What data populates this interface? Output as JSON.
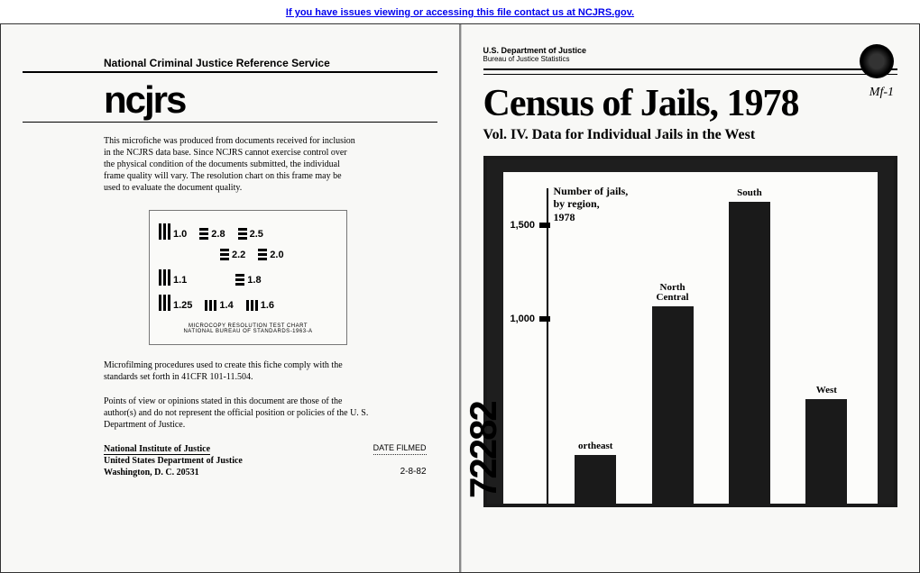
{
  "banner": {
    "text": "If you have issues viewing or accessing this file contact us at NCJRS.gov."
  },
  "left_page": {
    "service_name": "National Criminal Justice Reference Service",
    "logo": "ncjrs",
    "microfiche_note": "This microfiche was produced from documents received for inclusion in the NCJRS data base. Since NCJRS cannot exercise control over the physical condition of the documents submitted, the individual frame quality will vary. The resolution chart on this frame may be used to evaluate the document quality.",
    "reso_chart": {
      "row1": [
        "1.0",
        "2.8",
        "2.5"
      ],
      "row1b": [
        "2.2",
        "2.0"
      ],
      "row2": [
        "1.1",
        "1.8"
      ],
      "row3": [
        "1.25",
        "1.4",
        "1.6"
      ],
      "caption1": "MICROCOPY RESOLUTION TEST CHART",
      "caption2": "NATIONAL BUREAU OF STANDARDS-1963-A"
    },
    "comply_text": "Microfilming procedures used to create this fiche comply with the standards set forth in 41CFR 101-11.504.",
    "disclaimer": "Points of view or opinions stated in this document are those of the author(s) and do not represent the official position or policies of the U. S. Department of Justice.",
    "org1": "National Institute of Justice",
    "org2": "United States Department of Justice",
    "org3": "Washington, D. C. 20531",
    "date_filmed_label": "DATE FILMED",
    "date_filmed": "2-8-82"
  },
  "right_page": {
    "dept": "U.S. Department of Justice",
    "bureau": "Bureau of Justice Statistics",
    "annot": "Mf-1",
    "title": "Census of Jails, 1978",
    "subtitle": "Vol. IV. Data for Individual Jails in the West",
    "ref_number": "72282",
    "chart": {
      "title_l1": "Number of jails,",
      "title_l2": "by region,",
      "title_l3": "1978",
      "ymax": 1700,
      "ticks": [
        {
          "value": 1500,
          "label": "1,500"
        },
        {
          "value": 1000,
          "label": "1,000"
        }
      ],
      "bars": [
        {
          "label": "ortheast",
          "value": 260,
          "color": "#1a1a1a"
        },
        {
          "label": "North\nCentral",
          "value": 1060,
          "color": "#1a1a1a"
        },
        {
          "label": "South",
          "value": 1620,
          "color": "#1a1a1a"
        },
        {
          "label": "West",
          "value": 560,
          "color": "#1a1a1a"
        }
      ]
    }
  }
}
